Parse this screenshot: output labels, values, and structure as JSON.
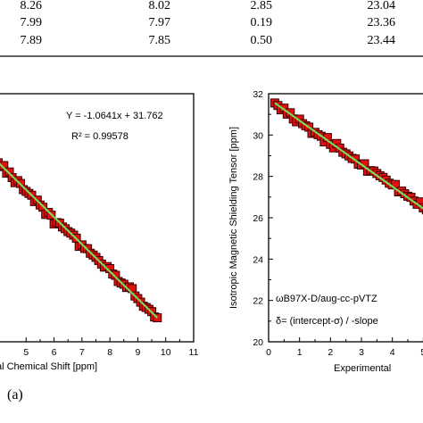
{
  "table": {
    "rows": [
      [
        "8.26",
        "8.02",
        "2.85",
        "23.04"
      ],
      [
        "7.99",
        "7.97",
        "0.19",
        "23.36"
      ],
      [
        "7.89",
        "7.85",
        "0.50",
        "23.44"
      ]
    ]
  },
  "panel_label": "(a)",
  "colors": {
    "marker_fill": "#e01010",
    "marker_stroke": "#3a0000",
    "fit_line": "#7ed957"
  },
  "chart_data": [
    {
      "type": "scatter",
      "panel": "left",
      "xlabel": "al Chemical Shift [ppm]",
      "ylabel": "",
      "xlim": [
        4,
        11
      ],
      "ylim": [
        20.5,
        30.2
      ],
      "x_ticks": [
        "5",
        "6",
        "7",
        "8",
        "9",
        "10",
        "11"
      ],
      "fit_equation": "Y = -1.0641x + 31.762",
      "r_squared": "R² = 0.99578",
      "fit": {
        "slope": -1.0641,
        "intercept": 31.762
      },
      "x": [
        4.0,
        4.1,
        4.2,
        4.3,
        4.4,
        4.5,
        4.6,
        4.7,
        4.8,
        4.9,
        5.0,
        5.1,
        5.2,
        5.3,
        5.4,
        5.5,
        5.6,
        5.7,
        5.8,
        5.9,
        6.0,
        6.1,
        6.2,
        6.3,
        6.4,
        6.5,
        6.6,
        6.7,
        6.8,
        6.9,
        7.0,
        7.1,
        7.2,
        7.3,
        7.4,
        7.5,
        7.6,
        7.7,
        7.8,
        7.9,
        8.0,
        8.1,
        8.2,
        8.3,
        8.4,
        8.5,
        8.6,
        8.7,
        8.8,
        8.9,
        9.0,
        9.1,
        9.2,
        9.3,
        9.4,
        9.5,
        9.6,
        9.7
      ],
      "y": [
        27.5,
        27.35,
        27.39,
        27.09,
        27.14,
        26.92,
        26.72,
        26.8,
        26.69,
        26.45,
        26.38,
        26.3,
        26.23,
        25.98,
        26.04,
        25.85,
        25.76,
        25.48,
        25.56,
        25.45,
        25.11,
        25.16,
        25.14,
        24.99,
        24.92,
        24.81,
        24.75,
        24.67,
        24.55,
        24.23,
        24.29,
        24.15,
        24.14,
        23.96,
        23.89,
        23.8,
        23.68,
        23.54,
        23.42,
        23.44,
        23.36,
        23.15,
        23.1,
        22.86,
        22.8,
        22.75,
        22.62,
        22.65,
        22.58,
        22.29,
        22.19,
        22.05,
        21.89,
        21.84,
        21.77,
        21.68,
        21.47,
        21.44
      ]
    },
    {
      "type": "scatter",
      "panel": "right",
      "xlabel": "Experimental",
      "ylabel": "Isotropic Magnetic Shielding Tensor [ppm]",
      "xlim": [
        0,
        5.25
      ],
      "ylim": [
        20,
        32
      ],
      "x_ticks": [
        "0",
        "1",
        "2",
        "3",
        "4",
        "5"
      ],
      "y_ticks": [
        "20",
        "22",
        "24",
        "26",
        "28",
        "30",
        "32"
      ],
      "annotation": "ωB97X-D/aug-cc-pVTZ",
      "formula": "δ= (intercept-σ) / -slope",
      "fit": {
        "slope": -1.0641,
        "intercept": 31.762
      },
      "x": [
        0.2,
        0.3,
        0.4,
        0.5,
        0.6,
        0.7,
        0.8,
        0.9,
        1.0,
        1.1,
        1.2,
        1.3,
        1.4,
        1.5,
        1.6,
        1.7,
        1.8,
        1.9,
        2.0,
        2.1,
        2.2,
        2.3,
        2.4,
        2.5,
        2.6,
        2.7,
        2.8,
        2.9,
        3.0,
        3.1,
        3.2,
        3.3,
        3.4,
        3.5,
        3.6,
        3.7,
        3.8,
        3.9,
        4.0,
        4.1,
        4.2,
        4.3,
        4.4,
        4.5,
        4.6,
        4.7,
        4.8,
        4.9,
        5.0,
        5.1
      ],
      "y": [
        31.55,
        31.43,
        31.22,
        31.3,
        31.01,
        31.08,
        30.78,
        30.64,
        30.77,
        30.55,
        30.45,
        30.38,
        30.08,
        30.13,
        30.02,
        29.94,
        29.67,
        29.88,
        29.55,
        29.38,
        29.59,
        29.37,
        29.17,
        29.09,
        28.99,
        28.87,
        28.84,
        28.59,
        28.55,
        28.61,
        28.25,
        28.28,
        28.26,
        28.14,
        28.03,
        27.95,
        27.82,
        27.67,
        27.59,
        27.61,
        27.25,
        27.29,
        27.16,
        27.04,
        26.99,
        26.81,
        26.65,
        26.77,
        26.48,
        26.38
      ]
    }
  ]
}
